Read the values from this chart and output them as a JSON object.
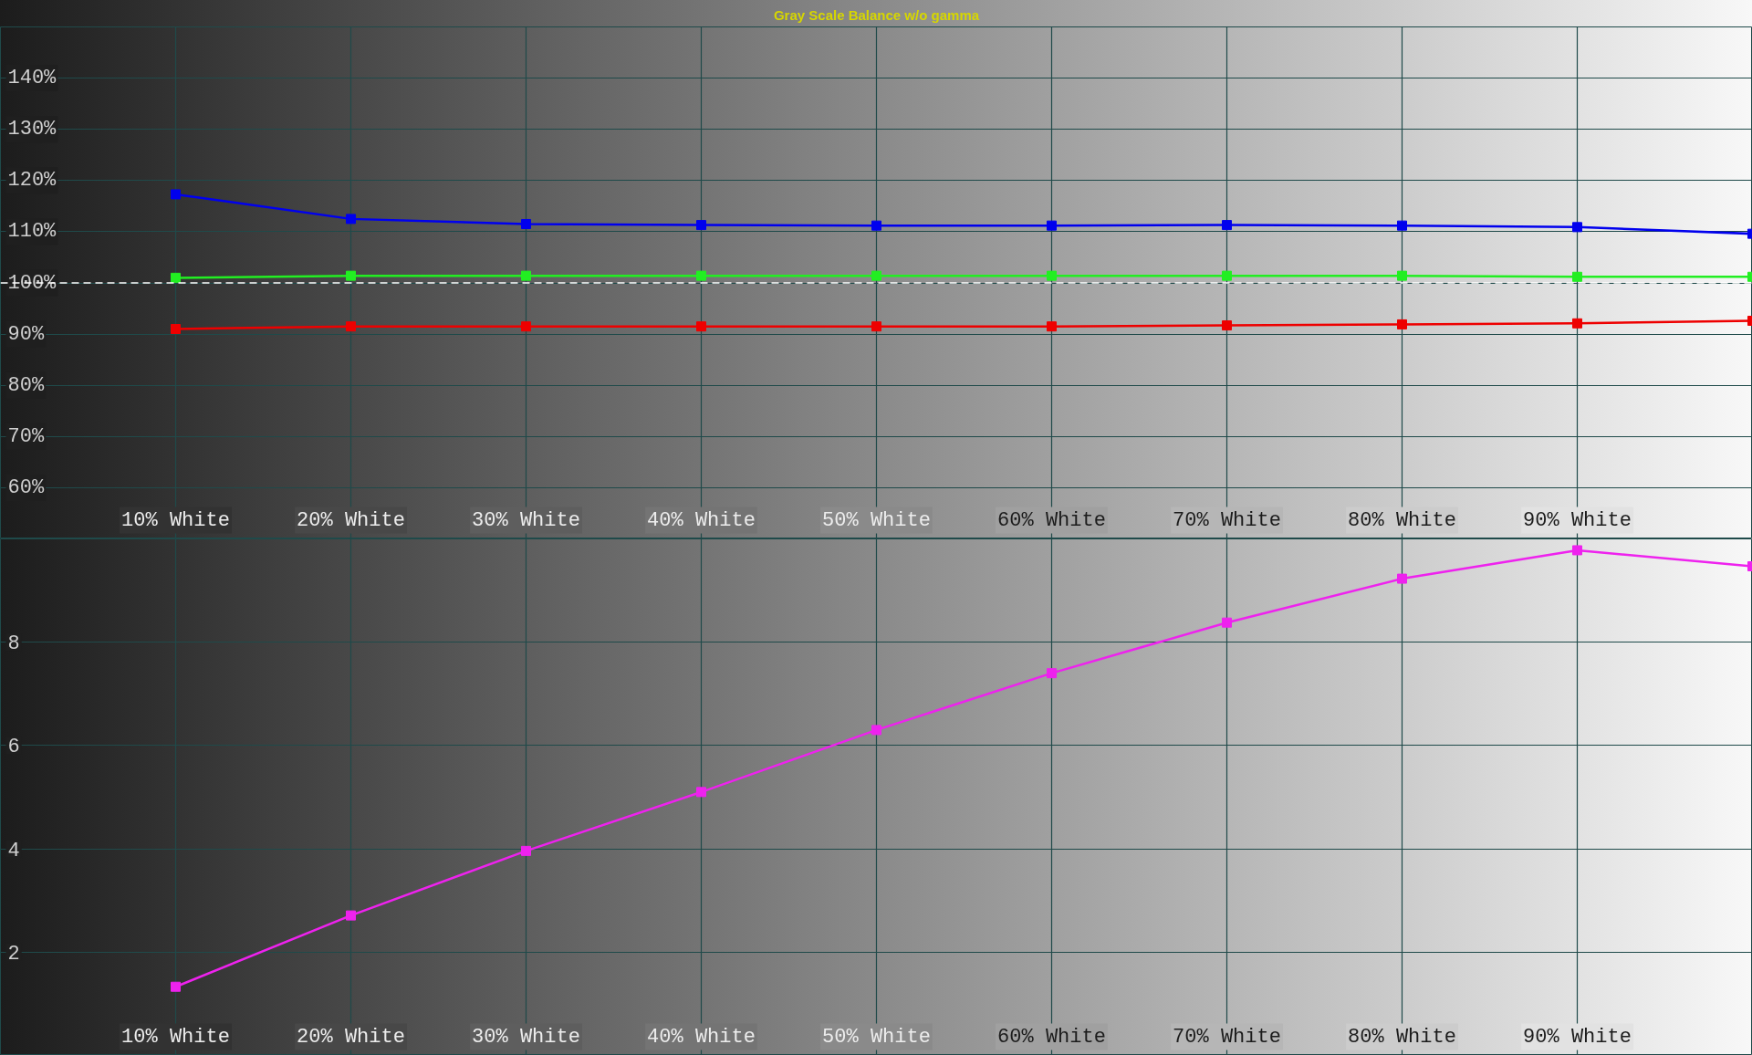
{
  "chart_data": [
    {
      "type": "line",
      "title": "Gray Scale Balance w/o gamma",
      "x": [
        10,
        20,
        30,
        40,
        50,
        60,
        70,
        80,
        90,
        100
      ],
      "series": [
        {
          "color": "#0000ee",
          "values": [
            117.3,
            112.5,
            111.5,
            111.3,
            111.2,
            111.2,
            111.3,
            111.2,
            110.9,
            109.6
          ]
        },
        {
          "color": "#22ee22",
          "values": [
            101.0,
            101.4,
            101.4,
            101.4,
            101.4,
            101.4,
            101.4,
            101.4,
            101.2,
            101.2
          ]
        },
        {
          "color": "#ee0000",
          "values": [
            91.0,
            91.5,
            91.5,
            91.5,
            91.5,
            91.5,
            91.7,
            91.9,
            92.1,
            92.6
          ]
        }
      ],
      "xlim": [
        0,
        100
      ],
      "xticks": [
        {
          "value": 10,
          "label": "10% White"
        },
        {
          "value": 20,
          "label": "20% White"
        },
        {
          "value": 30,
          "label": "30% White"
        },
        {
          "value": 40,
          "label": "40% White"
        },
        {
          "value": 50,
          "label": "50% White"
        },
        {
          "value": 60,
          "label": "60% White"
        },
        {
          "value": 70,
          "label": "70% White"
        },
        {
          "value": 80,
          "label": "80% White"
        },
        {
          "value": 90,
          "label": "90% White"
        }
      ],
      "ylim": [
        50,
        150
      ],
      "yticks": [
        {
          "value": 60,
          "label": "60%"
        },
        {
          "value": 70,
          "label": "70%"
        },
        {
          "value": 80,
          "label": "80%"
        },
        {
          "value": 90,
          "label": "90%"
        },
        {
          "value": 100,
          "label": "100%"
        },
        {
          "value": 110,
          "label": "110%"
        },
        {
          "value": 120,
          "label": "120%"
        },
        {
          "value": 130,
          "label": "130%"
        },
        {
          "value": 140,
          "label": "140%"
        }
      ],
      "ref_lines": [
        {
          "axis": "y",
          "value": 100,
          "color": "#ffffff",
          "line_style": "dashed"
        }
      ],
      "grid": true,
      "marker": "square",
      "line_style": "solid"
    },
    {
      "type": "line",
      "x": [
        10,
        20,
        30,
        40,
        50,
        60,
        70,
        80,
        90,
        100
      ],
      "series": [
        {
          "color": "#ee22ee",
          "values": [
            1.33,
            2.71,
            3.96,
            5.1,
            6.3,
            7.4,
            8.38,
            9.23,
            9.78,
            9.47
          ]
        }
      ],
      "xlim": [
        0,
        100
      ],
      "xticks": [
        {
          "value": 10,
          "label": "10% White"
        },
        {
          "value": 20,
          "label": "20% White"
        },
        {
          "value": 30,
          "label": "30% White"
        },
        {
          "value": 40,
          "label": "40% White"
        },
        {
          "value": 50,
          "label": "50% White"
        },
        {
          "value": 60,
          "label": "60% White"
        },
        {
          "value": 70,
          "label": "70% White"
        },
        {
          "value": 80,
          "label": "80% White"
        },
        {
          "value": 90,
          "label": "90% White"
        }
      ],
      "ylim": [
        0,
        10
      ],
      "yticks": [
        2,
        4,
        6,
        8
      ],
      "grid": true,
      "marker": "square",
      "line_style": "solid"
    }
  ]
}
